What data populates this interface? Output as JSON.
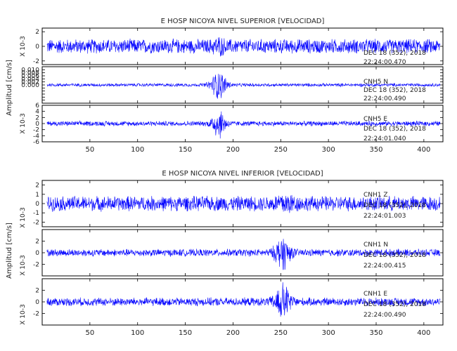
{
  "colors": {
    "trace": "#0a0aff",
    "axis": "#000000",
    "text": "#222222",
    "background": "#ffffff"
  },
  "chart_data": [
    {
      "type": "line",
      "title": "E HOSP NICOYA NIVEL SUPERIOR [VELOCIDAD]",
      "ylabel": "Amplitud [cm/s]",
      "xlim": [
        0,
        420
      ],
      "xticks": [
        50,
        100,
        150,
        200,
        250,
        300,
        350,
        400
      ],
      "show_xtick_labels": true,
      "panels": [
        {
          "station": "",
          "date": "DEC 18 (352), 2018",
          "time": "22:24:00.470",
          "scale_label": "X 10-3",
          "ylim": [
            -2.5,
            2.5
          ],
          "yticks": [
            -2,
            0,
            2
          ],
          "ytick_labels": [
            "-2",
            "0",
            "2"
          ],
          "noise_amplitude": 1.1,
          "burst": {
            "center": 185,
            "width": 6,
            "amplitude": 0.6
          }
        },
        {
          "station": "CNH5 N",
          "date": "DEC 18 (352), 2018",
          "time": "22:24:00.490",
          "scale_label": "",
          "ylim": [
            -0.012,
            0.012
          ],
          "yticks": [
            -0.01,
            -0.008,
            -0.006,
            -0.004,
            -0.002,
            0,
            0.002,
            0.004,
            0.006,
            0.008,
            0.01
          ],
          "ytick_labels": [
            "",
            "",
            "",
            "",
            "",
            "0.000",
            "0.002",
            "0.004",
            "0.006",
            "0.008",
            "0.010"
          ],
          "noise_amplitude": 0.0012,
          "burst": {
            "center": 185,
            "width": 8,
            "amplitude": 0.01
          }
        },
        {
          "station": "CNH5 E",
          "date": "DEC 18 (352), 2018",
          "time": "22:24:01.040",
          "scale_label": "X 10-3",
          "ylim": [
            -6,
            6
          ],
          "yticks": [
            -6,
            -4,
            -2,
            0,
            2,
            4,
            6
          ],
          "ytick_labels": [
            "-6",
            "-4",
            "-2",
            "0",
            "2",
            "4",
            "6"
          ],
          "noise_amplitude": 0.9,
          "burst": {
            "center": 185,
            "width": 7,
            "amplitude": 5
          }
        }
      ]
    },
    {
      "type": "line",
      "title": "E HOSP NICOYA NIVEL INFERIOR [VELOCIDAD]",
      "ylabel": "Amplitud [cm/s]",
      "xlim": [
        0,
        420
      ],
      "xticks": [
        50,
        100,
        150,
        200,
        250,
        300,
        350,
        400
      ],
      "show_xtick_labels": true,
      "panels": [
        {
          "station": "CNH1 Z",
          "date": "DEC 18 (352), 2018",
          "time": "22:24:01.003",
          "scale_label": "X 10-3",
          "ylim": [
            -2.5,
            2.5
          ],
          "yticks": [
            -2,
            -1,
            0,
            1,
            2
          ],
          "ytick_labels": [
            "-2",
            "-1",
            "0",
            "1",
            "2"
          ],
          "noise_amplitude": 0.9,
          "burst": {
            "center": 255,
            "width": 10,
            "amplitude": 0.6
          }
        },
        {
          "station": "CNH1 N",
          "date": "DEC 18 (352), 2018",
          "time": "22:24:00.415",
          "scale_label": "X 10-3",
          "ylim": [
            -4,
            4
          ],
          "yticks": [
            -2,
            0,
            2
          ],
          "ytick_labels": [
            "-2",
            "0",
            "2"
          ],
          "noise_amplitude": 0.7,
          "burst": {
            "center": 252,
            "width": 8,
            "amplitude": 2.8
          }
        },
        {
          "station": "CNH1 E",
          "date": "DEC 18 (352), 2018",
          "time": "22:24:00.490",
          "scale_label": "X 10-3",
          "ylim": [
            -4,
            4
          ],
          "yticks": [
            -2,
            0,
            2
          ],
          "ytick_labels": [
            "-2",
            "0",
            "2"
          ],
          "noise_amplitude": 0.8,
          "burst": {
            "center": 252,
            "width": 8,
            "amplitude": 3
          }
        }
      ]
    }
  ]
}
